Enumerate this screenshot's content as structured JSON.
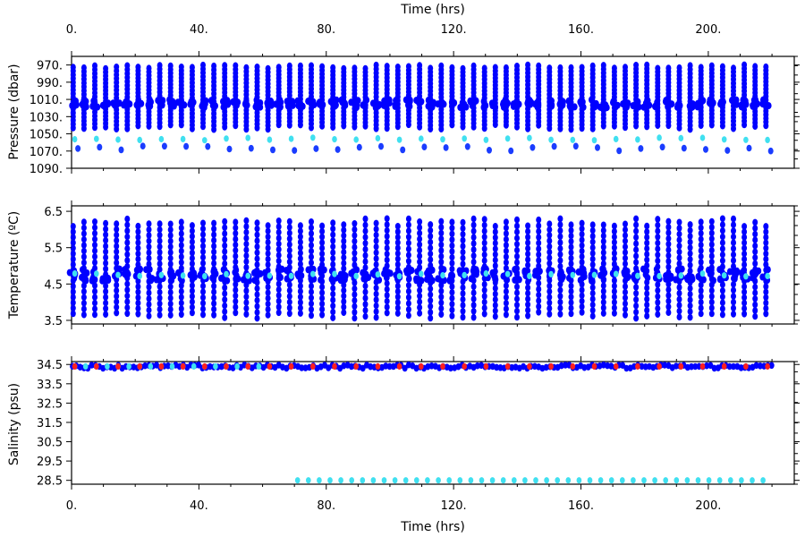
{
  "chart_data": [
    {
      "type": "scatter",
      "panel": "pressure",
      "xlabel_top": "Time (hrs)",
      "ylabel": "Pressure (dbar)",
      "xlim": [
        0,
        227
      ],
      "ylim": [
        1090,
        960
      ],
      "x_ticks": [
        "0.",
        "40.",
        "80.",
        "120.",
        "160.",
        "200."
      ],
      "y_ticks": [
        "970.",
        "990.",
        "1010.",
        "1030.",
        "1050.",
        "1070.",
        "1090."
      ],
      "series": [
        {
          "color": "#0000ff",
          "kind": "profile-scatter",
          "range": [
            968,
            1045
          ],
          "center": 1015
        },
        {
          "color": "#1a3cff",
          "kind": "sparse-bottom",
          "level": 1066
        },
        {
          "color": "#40e0f0",
          "kind": "periodic-level",
          "level": 1056
        }
      ]
    },
    {
      "type": "scatter",
      "panel": "temperature",
      "ylabel": "Temperature (ºC)",
      "xlim": [
        0,
        227
      ],
      "ylim": [
        3.4,
        6.65
      ],
      "x_ticks": [
        "0.",
        "40.",
        "80.",
        "120.",
        "160.",
        "200."
      ],
      "y_ticks": [
        "3.5",
        "4.5",
        "5.5",
        "6.5"
      ],
      "series": [
        {
          "color": "#0000ff",
          "kind": "profile-scatter",
          "range": [
            3.5,
            6.3
          ],
          "center": 4.75
        },
        {
          "color": "#40e0f0",
          "kind": "periodic-level",
          "level": 4.75
        }
      ]
    },
    {
      "type": "scatter",
      "panel": "salinity",
      "xlabel": "Time (hrs)",
      "ylabel": "Salinity (psu)",
      "xlim": [
        0,
        227
      ],
      "ylim": [
        28.3,
        34.65
      ],
      "x_ticks": [
        "0.",
        "40.",
        "80.",
        "120.",
        "160.",
        "200."
      ],
      "y_ticks": [
        "34.5",
        "33.5",
        "32.5",
        "31.5",
        "30.5",
        "29.5",
        "28.5"
      ],
      "series": [
        {
          "color": "#0000ff",
          "kind": "band",
          "range": [
            34.3,
            34.48
          ]
        },
        {
          "color": "#40e0f0",
          "kind": "periodic-level",
          "level": 34.4,
          "x_range": [
            0,
            60
          ]
        },
        {
          "color": "#ff2020",
          "kind": "periodic-level",
          "level": 34.4,
          "x_range": [
            0,
            220
          ]
        },
        {
          "color": "#40e0f0",
          "kind": "periodic-level",
          "level": 28.5,
          "x_range": [
            70,
            220
          ]
        }
      ]
    }
  ]
}
